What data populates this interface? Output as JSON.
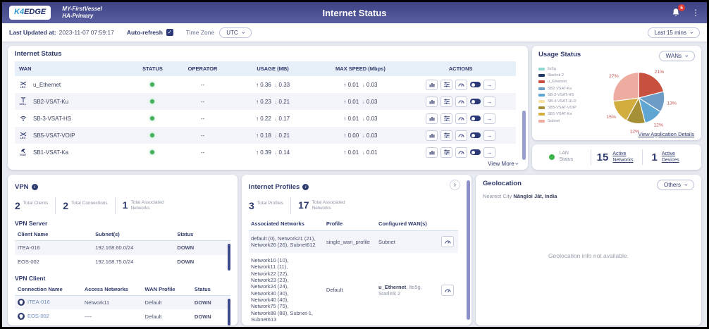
{
  "header": {
    "logo_k4": "K4",
    "logo_edge": "EDGE",
    "vessel_name": "MY-FirstVessel",
    "vessel_sub": "HA-Primary",
    "title": "Internet Status",
    "notification_count": "5"
  },
  "toolbar": {
    "last_updated_label": "Last Updated at:",
    "last_updated_value": "2023-11-07 07:59:17",
    "auto_refresh_label": "Auto-refresh",
    "time_zone_label": "Time Zone",
    "time_zone_value": "UTC",
    "time_range_value": "Last 15 mins"
  },
  "internet_status": {
    "title": "Internet Status",
    "columns": {
      "wan": "WAN",
      "status": "STATUS",
      "operator": "OPERATOR",
      "usage": "USAGE (MB)",
      "max_speed": "MAX SPEED (Mbps)",
      "actions": "ACTIONS"
    },
    "view_more_label": "View More",
    "rows": [
      {
        "name": "u_Ethernet",
        "icon": "LEO",
        "operator": "--",
        "usage_up": "0.36",
        "usage_down": "0.33",
        "speed_up": "0.01",
        "speed_down": "0.03"
      },
      {
        "name": "SB2-VSAT-Ku",
        "icon": "CELL",
        "operator": "--",
        "usage_up": "0.23",
        "usage_down": "0.21",
        "speed_up": "0.01",
        "speed_down": "0.03"
      },
      {
        "name": "SB-3-VSAT-HS",
        "icon": "",
        "operator": "--",
        "usage_up": "0.22",
        "usage_down": "0.17",
        "speed_up": "0.01",
        "speed_down": "0.03"
      },
      {
        "name": "SB5-VSAT-VOIP",
        "icon": "LEO",
        "operator": "--",
        "usage_up": "0.18",
        "usage_down": "0.21",
        "speed_up": "0.00",
        "speed_down": "0.03"
      },
      {
        "name": "SB1-VSAT-Ka",
        "icon": "VSAT",
        "operator": "--",
        "usage_up": "0.39",
        "usage_down": "0.14",
        "speed_up": "0.01",
        "speed_down": "0.01"
      }
    ]
  },
  "usage_status": {
    "title": "Usage Status",
    "selector_value": "WANs",
    "link_label": "View Application Details"
  },
  "chart_data": {
    "type": "pie",
    "title": "Usage Status",
    "slices": [
      {
        "label": "u_Ethernet",
        "value": 21,
        "color": "#c7503f"
      },
      {
        "label": "SB2-VSAT-Ku",
        "value": 13,
        "color": "#6d9cc6"
      },
      {
        "label": "SB-3-VSAT-HS",
        "value": 12,
        "color": "#5fa6d2"
      },
      {
        "label": "SB5-VSAT-VOIP",
        "value": 12,
        "color": "#a59038"
      },
      {
        "label": "SB1-VSAT-Ka",
        "value": 15,
        "color": "#d2ae3e"
      },
      {
        "label": "Subnet",
        "value": 27,
        "color": "#eeab9f"
      }
    ],
    "legend": [
      {
        "label": "lte5g",
        "color": "#8fd8d2"
      },
      {
        "label": "Starlink 2",
        "color": "#1f3864"
      },
      {
        "label": "u_Ethernet",
        "color": "#c7503f"
      },
      {
        "label": "SB2-VSAT-Ku",
        "color": "#6d9cc6"
      },
      {
        "label": "SB-3-VSAT-HS",
        "color": "#5fa6d2"
      },
      {
        "label": "SB-4-VSAT-ULD",
        "color": "#f6e3a1"
      },
      {
        "label": "SB5-VSAT-VOIP",
        "color": "#a59038"
      },
      {
        "label": "SB1-VSAT-Ka",
        "color": "#d2ae3e"
      },
      {
        "label": "Subnet",
        "color": "#eeab9f"
      }
    ],
    "label_color": "#c0504d",
    "legend_position": "left"
  },
  "lan": {
    "status_label": "LAN Status",
    "networks_value": "15",
    "networks_label": "Active Networks",
    "devices_value": "1",
    "devices_label": "Active Devices"
  },
  "vpn": {
    "title": "VPN",
    "stats": [
      {
        "value": "2",
        "label": "Total Clients"
      },
      {
        "value": "2",
        "label": "Total Connections"
      },
      {
        "value": "1",
        "label": "Total Associated Networks"
      }
    ],
    "server": {
      "title": "VPN Server",
      "columns": {
        "client": "Client Name",
        "subnet": "Subnet(s)",
        "status": "Status"
      },
      "rows": [
        {
          "client": "ITEA-016",
          "subnet": "192.168.60.0/24",
          "status": "DOWN"
        },
        {
          "client": "EOS-002",
          "subnet": "192.168.75.0/24",
          "status": "DOWN"
        }
      ]
    },
    "client": {
      "title": "VPN Client",
      "columns": {
        "connection": "Connection Name",
        "access": "Access Networks",
        "wan_profile": "WAN Profile",
        "status": "Status"
      },
      "rows": [
        {
          "connection": "ITEA-016",
          "access": "Network11",
          "wan_profile": "Default",
          "status": "DOWN"
        },
        {
          "connection": "EOS-002",
          "access": "----",
          "wan_profile": "Default",
          "status": "DOWN"
        }
      ]
    }
  },
  "profiles": {
    "title": "Internet Profiles",
    "stats": [
      {
        "value": "3",
        "label": "Total Profiles"
      },
      {
        "value": "17",
        "label": "Total Associated Networks"
      }
    ],
    "columns": {
      "networks": "Associated Networks",
      "profile": "Profile",
      "wans": "Configured WAN(s)"
    },
    "rows": [
      {
        "networks": "default (0), Network21 (21), Network26 (26), Subnet612",
        "profile": "single_wan_profile",
        "wans_primary": "Subnet",
        "wans_rest": ""
      },
      {
        "networks": "Network10 (10),\nNetwork11 (11),\nNetwork22 (22),\nNetwork23 (23),\nNetwork24 (24),\nNetwork30 (30),\nNetwork40 (40),\nNetwork75 (75),\nNetwork88 (88), Subnet-1,\nSubnet613",
        "profile": "Default",
        "wans_primary": "u_Ethernet",
        "wans_rest": ", lte5g, Starlink 2"
      }
    ]
  },
  "geolocation": {
    "title": "Geolocation",
    "selector_value": "Others",
    "nearest_city_label": "Nearest City",
    "nearest_city_value": "Nāngloi Jāt, India",
    "empty_message": "Geolocation info not available."
  }
}
